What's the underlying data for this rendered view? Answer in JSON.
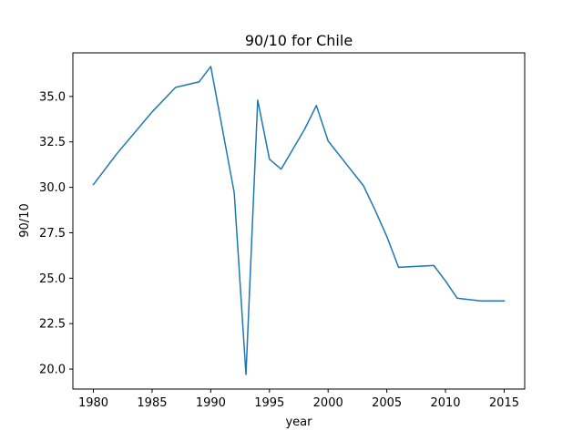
{
  "chart_data": {
    "type": "line",
    "title": "90/10 for Chile",
    "xlabel": "year",
    "ylabel": "90/10",
    "xlim": [
      1978.25,
      2016.75
    ],
    "ylim": [
      18.9,
      37.4
    ],
    "grid": false,
    "xticks": [
      1980,
      1985,
      1990,
      1995,
      2000,
      2005,
      2010,
      2015
    ],
    "xtick_labels": [
      "1980",
      "1985",
      "1990",
      "1995",
      "2000",
      "2005",
      "2010",
      "2015"
    ],
    "yticks": [
      20.0,
      22.5,
      25.0,
      27.5,
      30.0,
      32.5,
      35.0
    ],
    "ytick_labels": [
      "20.0",
      "22.5",
      "25.0",
      "27.5",
      "30.0",
      "32.5",
      "35.0"
    ],
    "series": [
      {
        "color": "#1f77b4",
        "x": [
          1980,
          1982,
          1985,
          1987,
          1989,
          1990,
          1992,
          1993,
          1994,
          1995,
          1996,
          1998,
          1999,
          2000,
          2003,
          2004,
          2005,
          2006,
          2009,
          2010,
          2011,
          2013,
          2015
        ],
        "y": [
          30.15,
          31.85,
          34.15,
          35.5,
          35.8,
          36.65,
          29.7,
          19.7,
          34.8,
          31.55,
          31.0,
          33.2,
          34.5,
          32.55,
          30.1,
          28.75,
          27.3,
          25.6,
          25.7,
          24.85,
          23.9,
          23.75,
          23.75
        ]
      }
    ]
  }
}
